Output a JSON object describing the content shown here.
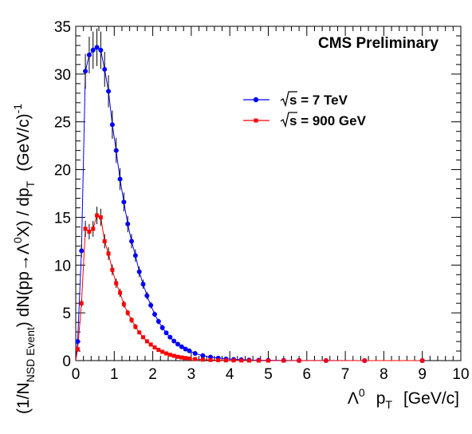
{
  "chart_data": {
    "type": "scatter",
    "title": "",
    "watermark": "CMS Preliminary",
    "xlabel": {
      "symbol": "Λ",
      "sup": "0",
      "main": "p",
      "sub": "T",
      "unit": "[GeV/c]"
    },
    "ylabel": {
      "part1": "(1/N",
      "sub1": "NSD Event",
      "part2": ") dN(pp→Λ",
      "sup1": "0",
      "part3": "X) / dp",
      "sub2": "T",
      "part4": "(GeV/c)",
      "sup2": "-1"
    },
    "xlim": [
      0,
      10
    ],
    "ylim": [
      0,
      35
    ],
    "x_ticks": [
      "0",
      "1",
      "2",
      "3",
      "4",
      "5",
      "6",
      "7",
      "8",
      "9",
      "10"
    ],
    "y_ticks": [
      "0",
      "5",
      "10",
      "15",
      "20",
      "25",
      "30",
      "35"
    ],
    "grid": false,
    "legend_position": "top-right",
    "series": [
      {
        "name": "√s = 7 TeV",
        "legend_root": "s",
        "legend_rest": " = 7 TeV",
        "color": "#0000ff",
        "marker": "circle",
        "x": [
          0.05,
          0.15,
          0.25,
          0.35,
          0.45,
          0.55,
          0.65,
          0.75,
          0.85,
          0.95,
          1.05,
          1.15,
          1.25,
          1.35,
          1.45,
          1.55,
          1.65,
          1.75,
          1.85,
          1.95,
          2.05,
          2.15,
          2.25,
          2.35,
          2.45,
          2.55,
          2.65,
          2.75,
          2.85,
          2.95,
          3.1,
          3.3,
          3.5,
          3.7,
          3.9,
          4.1,
          4.3,
          4.5,
          4.75,
          5.0,
          5.4,
          5.8,
          6.5,
          7.5,
          9.0
        ],
        "y": [
          2.0,
          11.5,
          30.3,
          32.0,
          32.5,
          32.8,
          32.5,
          30.5,
          28.2,
          24.7,
          22.0,
          19.0,
          16.6,
          14.3,
          12.5,
          11.0,
          9.3,
          8.0,
          6.8,
          5.8,
          4.85,
          4.1,
          3.45,
          2.9,
          2.45,
          2.05,
          1.72,
          1.45,
          1.21,
          1.02,
          0.75,
          0.52,
          0.37,
          0.26,
          0.18,
          0.13,
          0.09,
          0.065,
          0.045,
          0.03,
          0.018,
          0.011,
          0.005,
          0.0025,
          0.001
        ]
      },
      {
        "name": "√s = 900 GeV",
        "legend_root": "s",
        "legend_rest": " = 900 GeV",
        "color": "#ff0000",
        "marker": "square",
        "x": [
          0.05,
          0.15,
          0.25,
          0.35,
          0.45,
          0.55,
          0.65,
          0.75,
          0.85,
          0.95,
          1.05,
          1.15,
          1.25,
          1.35,
          1.45,
          1.55,
          1.65,
          1.75,
          1.85,
          1.95,
          2.05,
          2.15,
          2.25,
          2.35,
          2.45,
          2.55,
          2.65,
          2.75,
          2.85,
          2.95,
          3.1,
          3.3,
          3.5,
          3.7,
          3.9,
          4.1,
          4.3,
          4.5,
          4.75,
          5.0,
          5.4,
          5.8,
          6.5,
          7.5,
          9.0
        ],
        "y": [
          1.2,
          6.0,
          13.8,
          13.5,
          13.8,
          15.2,
          15.0,
          12.5,
          11.2,
          9.5,
          8.1,
          7.1,
          5.9,
          5.0,
          4.25,
          3.55,
          2.95,
          2.45,
          2.02,
          1.68,
          1.38,
          1.12,
          0.92,
          0.75,
          0.61,
          0.5,
          0.4,
          0.33,
          0.27,
          0.22,
          0.155,
          0.1,
          0.066,
          0.043,
          0.028,
          0.019,
          0.013,
          0.009,
          0.006,
          0.004,
          0.002,
          0.001,
          0.0005,
          0.0002,
          0.0001
        ]
      }
    ]
  }
}
